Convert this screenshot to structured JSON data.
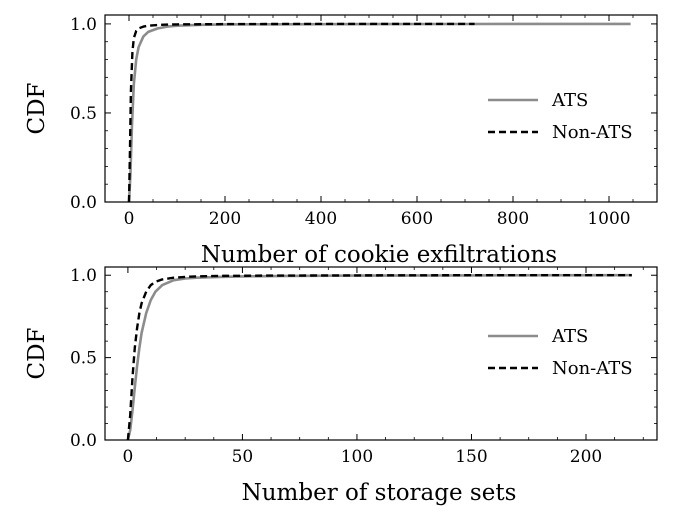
{
  "chart_data": [
    {
      "type": "line",
      "title": "",
      "xlabel": "Number of cookie exfiltrations",
      "ylabel": "CDF",
      "xlim": [
        -50,
        1100
      ],
      "ylim": [
        0,
        1.05
      ],
      "xticks": [
        0,
        200,
        400,
        600,
        800,
        1000
      ],
      "yticks": [
        0.0,
        0.5,
        1.0
      ],
      "xtick_labels": [
        "0",
        "200",
        "400",
        "600",
        "800",
        "1000"
      ],
      "ytick_labels": [
        "0.0",
        "0.5",
        "1.0"
      ],
      "grid": false,
      "legend_position": "right",
      "series": [
        {
          "name": "ATS",
          "color": "#8c8c8c",
          "style": "solid",
          "x": [
            0,
            3,
            6,
            10,
            15,
            20,
            30,
            40,
            60,
            80,
            100,
            150,
            200,
            300,
            500,
            700,
            900,
            1045
          ],
          "y": [
            0.0,
            0.15,
            0.42,
            0.66,
            0.8,
            0.87,
            0.93,
            0.955,
            0.975,
            0.985,
            0.99,
            0.995,
            0.997,
            0.998,
            0.999,
            0.9995,
            1.0,
            1.0
          ]
        },
        {
          "name": "Non-ATS",
          "color": "#000000",
          "style": "dashed",
          "x": [
            0,
            2,
            4,
            7,
            10,
            15,
            20,
            30,
            40,
            60,
            80,
            100,
            200,
            400,
            720
          ],
          "y": [
            0.0,
            0.3,
            0.62,
            0.84,
            0.92,
            0.96,
            0.975,
            0.985,
            0.99,
            0.994,
            0.996,
            0.997,
            0.999,
            1.0,
            1.0
          ]
        }
      ]
    },
    {
      "type": "line",
      "title": "",
      "xlabel": "Number of storage sets",
      "ylabel": "CDF",
      "xlim": [
        -10,
        231
      ],
      "ylim": [
        0,
        1.05
      ],
      "xticks": [
        0,
        50,
        100,
        150,
        200
      ],
      "yticks": [
        0.0,
        0.5,
        1.0
      ],
      "xtick_labels": [
        "0",
        "50",
        "100",
        "150",
        "200"
      ],
      "ytick_labels": [
        "0.0",
        "0.5",
        "1.0"
      ],
      "grid": false,
      "legend_position": "right",
      "series": [
        {
          "name": "ATS",
          "color": "#8c8c8c",
          "style": "solid",
          "x": [
            0,
            1,
            2,
            3,
            4,
            5,
            6,
            8,
            10,
            12,
            15,
            20,
            25,
            30,
            40,
            50,
            70,
            100,
            150,
            220
          ],
          "y": [
            0.0,
            0.06,
            0.18,
            0.32,
            0.45,
            0.56,
            0.65,
            0.77,
            0.85,
            0.9,
            0.94,
            0.97,
            0.98,
            0.985,
            0.99,
            0.993,
            0.996,
            0.998,
            0.999,
            1.0
          ]
        },
        {
          "name": "Non-ATS",
          "color": "#000000",
          "style": "dashed",
          "x": [
            0,
            1,
            2,
            3,
            4,
            5,
            6,
            8,
            10,
            12,
            15,
            20,
            25,
            30,
            40,
            60,
            100,
            150,
            220
          ],
          "y": [
            0.0,
            0.15,
            0.38,
            0.56,
            0.68,
            0.77,
            0.83,
            0.9,
            0.94,
            0.96,
            0.975,
            0.985,
            0.99,
            0.993,
            0.996,
            0.998,
            0.999,
            1.0,
            1.0
          ]
        }
      ]
    }
  ]
}
